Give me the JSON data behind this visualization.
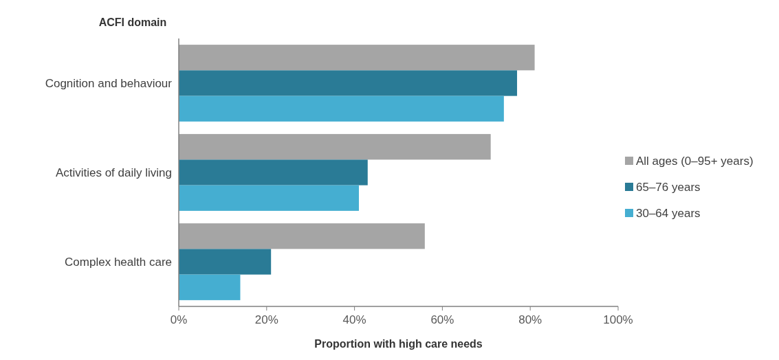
{
  "chart_data": {
    "type": "bar",
    "orientation": "horizontal",
    "ylabel": "ACFI domain",
    "xlabel": "Proportion with high care needs",
    "categories": [
      "Cognition and behaviour",
      "Activities of daily living",
      "Complex health care"
    ],
    "series": [
      {
        "name": "All ages (0–95+ years)",
        "color": "#a5a5a5",
        "values": [
          81,
          71,
          56
        ]
      },
      {
        "name": "65–76 years",
        "color": "#2a7b96",
        "values": [
          77,
          43,
          21
        ]
      },
      {
        "name": "30–64 years",
        "color": "#45aed1",
        "values": [
          74,
          41,
          14
        ]
      }
    ],
    "xlim": [
      0,
      100
    ],
    "xticks": [
      {
        "value": 0,
        "label": "0%"
      },
      {
        "value": 20,
        "label": "20%"
      },
      {
        "value": 40,
        "label": "40%"
      },
      {
        "value": 60,
        "label": "60%"
      },
      {
        "value": 80,
        "label": "80%"
      },
      {
        "value": 100,
        "label": "100%"
      }
    ],
    "grid": false,
    "legend": "right"
  }
}
